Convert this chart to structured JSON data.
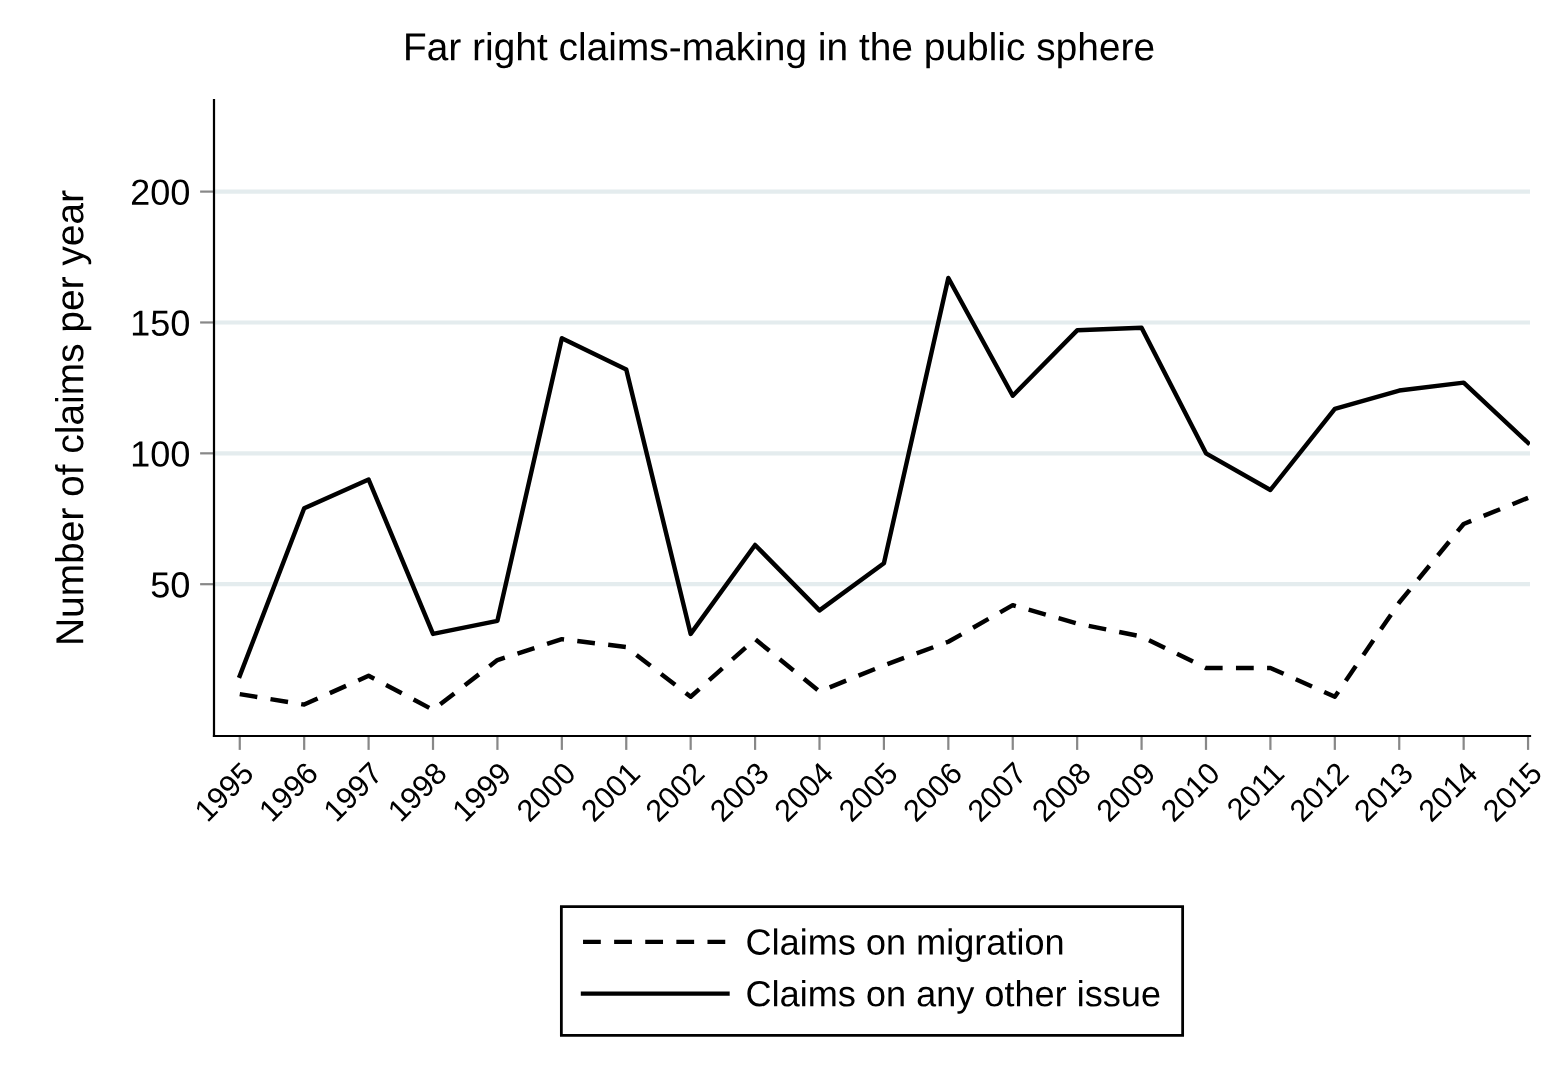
{
  "chart_data": {
    "type": "line",
    "title": "Far right claims-making in the public sphere",
    "ylabel": "Number of claims per year",
    "categories": [
      "1995",
      "1996",
      "1997",
      "1998",
      "1999",
      "2000",
      "2001",
      "2002",
      "2003",
      "2004",
      "2005",
      "2006",
      "2007",
      "2008",
      "2009",
      "2010",
      "2011",
      "2012",
      "2013",
      "2014",
      "2015"
    ],
    "series": [
      {
        "name": "Claims on migration",
        "color": "#000000",
        "line_style": "dashed",
        "values": [
          8,
          4,
          15,
          2,
          21,
          29,
          26,
          7,
          29,
          9,
          19,
          28,
          42,
          35,
          30,
          18,
          18,
          7,
          43,
          73,
          83
        ]
      },
      {
        "name": "Claims on any other issue",
        "color": "#000000",
        "line_style": "solid",
        "values": [
          15,
          79,
          90,
          31,
          36,
          144,
          132,
          31,
          65,
          40,
          58,
          167,
          122,
          147,
          148,
          100,
          86,
          117,
          124,
          127,
          104
        ]
      }
    ],
    "ylim": [
      -8,
      235
    ],
    "yticks": [
      50,
      100,
      150,
      200
    ],
    "grid": "y",
    "legend": "bottom",
    "marker": "none"
  }
}
